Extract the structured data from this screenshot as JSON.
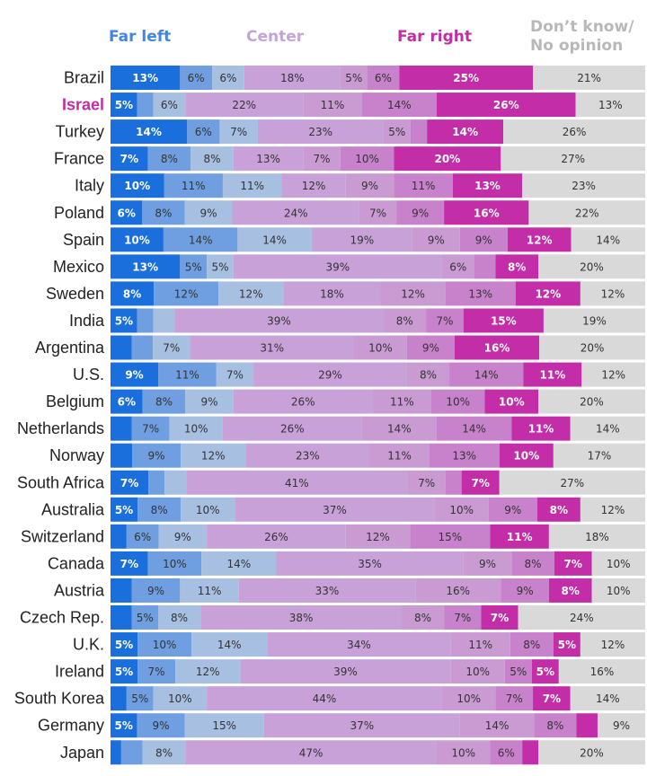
{
  "headers": {
    "far_left": "Far left",
    "center": "Center",
    "far_right": "Far right",
    "dont_know": "Don’t know/\nNo opinion"
  },
  "colors": {
    "segments": [
      "#1a6fdc",
      "#6f9fe0",
      "#a7bfe1",
      "#c7a1d7",
      "#c99bd2",
      "#c882cb",
      "#c44db3",
      "#c32ea8",
      "#d9d9d9"
    ],
    "header_far_left": "#3f86e3",
    "header_center": "#c4a3d8",
    "header_far_right": "#c02ea6",
    "header_dont_know": "#b8b8b8",
    "highlight_country": "#c02ea6"
  },
  "chart_data": {
    "type": "bar",
    "orientation": "horizontal",
    "stacked": true,
    "unit": "%",
    "scale": "0 = far left, 10 = far right",
    "highlight": "Israel",
    "categories": [
      "Brazil",
      "Israel",
      "Turkey",
      "France",
      "Italy",
      "Poland",
      "Spain",
      "Mexico",
      "Sweden",
      "India",
      "Argentina",
      "U.S.",
      "Belgium",
      "Netherlands",
      "Norway",
      "South Africa",
      "Australia",
      "Switzerland",
      "Canada",
      "Austria",
      "Czech Rep.",
      "U.K.",
      "Ireland",
      "South Korea",
      "Germany",
      "Japan"
    ],
    "rows": [
      [
        13,
        6,
        6,
        18,
        5,
        6,
        25,
        21
      ],
      [
        5,
        3,
        6,
        22,
        11,
        14,
        26,
        13
      ],
      [
        14,
        6,
        7,
        23,
        5,
        3,
        14,
        26
      ],
      [
        7,
        8,
        8,
        13,
        7,
        10,
        20,
        27
      ],
      [
        10,
        11,
        11,
        12,
        9,
        11,
        13,
        23
      ],
      [
        6,
        8,
        9,
        24,
        7,
        9,
        16,
        22
      ],
      [
        10,
        14,
        14,
        19,
        9,
        9,
        12,
        14
      ],
      [
        13,
        5,
        5,
        39,
        6,
        4,
        8,
        20
      ],
      [
        8,
        12,
        12,
        18,
        12,
        13,
        12,
        12
      ],
      [
        5,
        3,
        4,
        39,
        8,
        7,
        15,
        19
      ],
      [
        4,
        4,
        7,
        31,
        10,
        9,
        16,
        20
      ],
      [
        9,
        11,
        7,
        29,
        8,
        14,
        11,
        12
      ],
      [
        6,
        8,
        9,
        26,
        11,
        10,
        10,
        20
      ],
      [
        4,
        7,
        10,
        26,
        14,
        14,
        11,
        14
      ],
      [
        4,
        9,
        12,
        23,
        11,
        13,
        10,
        17
      ],
      [
        7,
        3,
        4,
        41,
        7,
        3,
        7,
        27
      ],
      [
        5,
        8,
        10,
        37,
        10,
        9,
        8,
        12
      ],
      [
        3,
        6,
        9,
        26,
        12,
        15,
        11,
        18
      ],
      [
        7,
        10,
        14,
        35,
        9,
        8,
        7,
        10
      ],
      [
        4,
        9,
        11,
        33,
        16,
        9,
        8,
        10
      ],
      [
        4,
        5,
        8,
        38,
        8,
        7,
        7,
        24
      ],
      [
        5,
        10,
        14,
        34,
        11,
        8,
        5,
        12
      ],
      [
        5,
        7,
        12,
        39,
        10,
        5,
        5,
        16
      ],
      [
        3,
        5,
        10,
        44,
        10,
        7,
        7,
        14
      ],
      [
        5,
        9,
        15,
        37,
        14,
        8,
        4,
        9
      ],
      [
        2,
        4,
        8,
        47,
        10,
        6,
        3,
        20
      ]
    ],
    "segment_colors": [
      [
        0,
        1,
        2,
        3,
        4,
        5,
        7,
        8
      ],
      [
        0,
        1,
        2,
        3,
        4,
        5,
        7,
        8
      ],
      [
        0,
        1,
        2,
        3,
        4,
        5,
        7,
        8
      ],
      [
        0,
        1,
        2,
        3,
        4,
        5,
        7,
        8
      ],
      [
        0,
        1,
        2,
        3,
        4,
        5,
        7,
        8
      ],
      [
        0,
        1,
        2,
        3,
        4,
        5,
        7,
        8
      ],
      [
        0,
        1,
        2,
        3,
        4,
        5,
        7,
        8
      ],
      [
        0,
        1,
        2,
        3,
        4,
        5,
        7,
        8
      ],
      [
        0,
        1,
        2,
        3,
        4,
        5,
        7,
        8
      ],
      [
        0,
        1,
        2,
        3,
        4,
        5,
        7,
        8
      ],
      [
        0,
        1,
        2,
        3,
        4,
        5,
        7,
        8
      ],
      [
        0,
        1,
        2,
        3,
        4,
        5,
        7,
        8
      ],
      [
        0,
        1,
        2,
        3,
        4,
        5,
        7,
        8
      ],
      [
        0,
        1,
        2,
        3,
        4,
        5,
        7,
        8
      ],
      [
        0,
        1,
        2,
        3,
        4,
        5,
        7,
        8
      ],
      [
        0,
        1,
        2,
        3,
        4,
        5,
        7,
        8
      ],
      [
        0,
        1,
        2,
        3,
        4,
        5,
        7,
        8
      ],
      [
        0,
        1,
        2,
        3,
        4,
        5,
        7,
        8
      ],
      [
        0,
        1,
        2,
        3,
        4,
        5,
        7,
        8
      ],
      [
        0,
        1,
        2,
        3,
        4,
        5,
        7,
        8
      ],
      [
        0,
        1,
        2,
        3,
        4,
        5,
        7,
        8
      ],
      [
        0,
        1,
        2,
        3,
        4,
        5,
        7,
        8
      ],
      [
        0,
        1,
        2,
        3,
        4,
        5,
        7,
        8
      ],
      [
        0,
        1,
        2,
        3,
        4,
        5,
        7,
        8
      ],
      [
        0,
        1,
        2,
        3,
        4,
        5,
        7,
        8
      ],
      [
        0,
        1,
        2,
        3,
        4,
        5,
        7,
        8
      ]
    ],
    "label_min_value": 5
  }
}
